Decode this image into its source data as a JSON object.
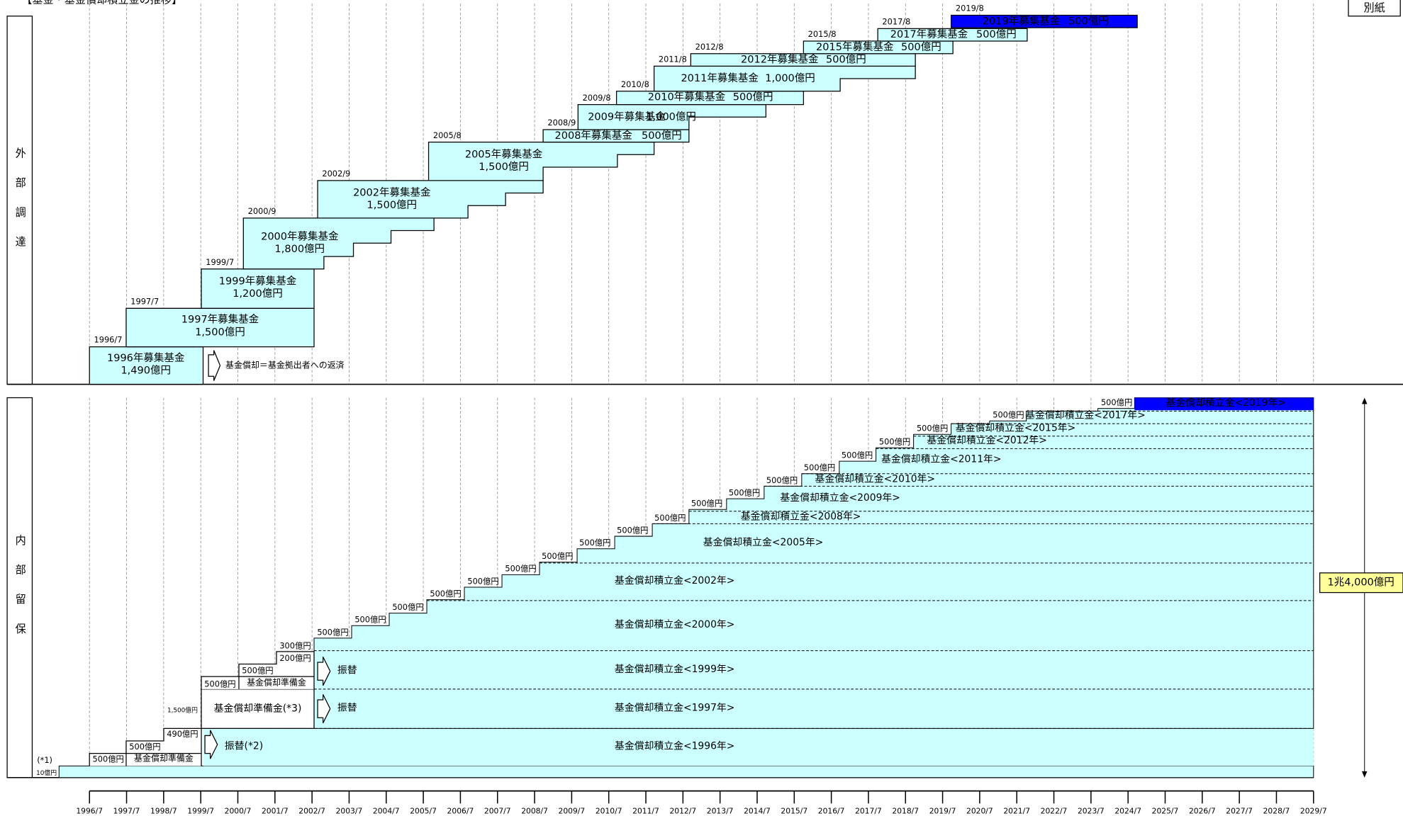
{
  "title": "【基金・基金償却積立金の推移】",
  "attachment": "別紙",
  "external": {
    "label": "外部調達",
    "note": "基金償却＝基金拠出者への返済",
    "funds": [
      {
        "date": "1996/7",
        "name": "1996年募集基金",
        "amount": "1,490億円"
      },
      {
        "date": "1997/7",
        "name": "1997年募集基金",
        "amount": "1,500億円"
      },
      {
        "date": "1999/7",
        "name": "1999年募集基金",
        "amount": "1,200億円"
      },
      {
        "date": "2000/9",
        "name": "2000年募集基金",
        "amount": "1,800億円"
      },
      {
        "date": "2002/9",
        "name": "2002年募集基金",
        "amount": "1,500億円"
      },
      {
        "date": "2005/8",
        "name": "2005年募集基金",
        "amount": "1,500億円"
      },
      {
        "date": "2008/9",
        "name": "2008年募集基金",
        "amount": "500億円"
      },
      {
        "date": "2009/8",
        "name": "2009年募集基金",
        "amount": "1,000億円"
      },
      {
        "date": "2010/8",
        "name": "2010年募集基金",
        "amount": "500億円"
      },
      {
        "date": "2011/8",
        "name": "2011年募集基金",
        "amount": "1,000億円"
      },
      {
        "date": "2012/8",
        "name": "2012年募集基金",
        "amount": "500億円"
      },
      {
        "date": "2015/8",
        "name": "2015年募集基金",
        "amount": "500億円"
      },
      {
        "date": "2017/8",
        "name": "2017年募集基金",
        "amount": "500億円"
      },
      {
        "date": "2019/8",
        "name": "2019年募集基金",
        "amount": "500億円"
      }
    ]
  },
  "internal": {
    "label": "内部留保",
    "note": "(*1)",
    "steps": [
      "10億円",
      "500億円",
      "500億円",
      "490億円",
      "1,500億円",
      "500億円",
      "500億円",
      "200億円",
      "300億円",
      "500億円",
      "500億円",
      "500億円",
      "500億円",
      "500億円",
      "500億円",
      "500億円",
      "500億円",
      "500億円",
      "500億円",
      "500億円",
      "500億円",
      "500億円",
      "500億円",
      "500億円",
      "500億円",
      "500億円",
      "500億円",
      "500億円"
    ],
    "provisions": [
      "基金償却準備金",
      "基金償却準備金(*3)",
      "基金償却準備金"
    ],
    "transfers": [
      "振替(*2)",
      "振替",
      "振替"
    ],
    "reserves": [
      "基金償却積立金<1996年>",
      "基金償却積立金<1997年>",
      "基金償却積立金<1999年>",
      "基金償却積立金<2000年>",
      "基金償却積立金<2002年>",
      "基金償却積立金<2005年>",
      "基金償却積立金<2008年>",
      "基金償却積立金<2009年>",
      "基金償却積立金<2010年>",
      "基金償却積立金<2011年>",
      "基金償却積立金<2012年>",
      "基金償却積立金<2015年>",
      "基金償却積立金<2017年>",
      "基金償却積立金<2019年>"
    ],
    "total": "1兆4,000億円"
  },
  "timeline": [
    "1996/7",
    "1997/7",
    "1998/7",
    "1999/7",
    "2000/7",
    "2001/7",
    "2002/7",
    "2003/7",
    "2004/7",
    "2005/7",
    "2006/7",
    "2007/7",
    "2008/7",
    "2009/7",
    "2010/7",
    "2011/7",
    "2012/7",
    "2013/7",
    "2014/7",
    "2015/7",
    "2016/7",
    "2017/7",
    "2018/7",
    "2019/7",
    "2020/7",
    "2021/7",
    "2022/7",
    "2023/7",
    "2024/7",
    "2025/7",
    "2026/7",
    "2027/7",
    "2028/7",
    "2029/7"
  ]
}
